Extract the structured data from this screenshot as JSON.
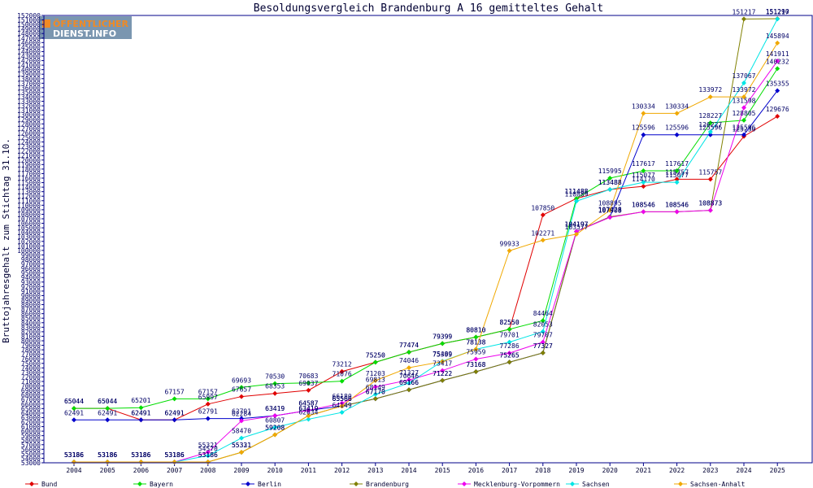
{
  "logo": {
    "line1": "ÖFFENTLICHER",
    "line2": "DIENST.INFO"
  },
  "chart_data": {
    "type": "line",
    "title": "Besoldungsvergleich Brandenburg A 16 gemitteltes Gehalt",
    "xlabel": "",
    "ylabel": "Bruttojahresgehalt zum Stichtag 31.10.",
    "ylim": [
      53000,
      152000
    ],
    "ytick_step": 1000,
    "grid": false,
    "legend_position": "bottom",
    "categories": [
      "2004",
      "2005",
      "2006",
      "2007",
      "2008",
      "2009",
      "2010",
      "2011",
      "2012",
      "2013",
      "2014",
      "2015",
      "2016",
      "2017",
      "2018",
      "2019",
      "2020",
      "2021",
      "2022",
      "2023",
      "2024",
      "2025"
    ],
    "series": [
      {
        "name": "Bund",
        "color": "#e00000",
        "values": [
          65044,
          65044,
          62491,
          62491,
          65997,
          67657,
          68353,
          69037,
          73212,
          75250,
          77474,
          79399,
          80810,
          82550,
          107850,
          111488,
          113488,
          114170,
          115757,
          115757,
          125250,
          129676
        ]
      },
      {
        "name": "Bayern",
        "color": "#00dd00",
        "values": [
          65044,
          65044,
          65201,
          67157,
          67157,
          69693,
          70530,
          70683,
          71076,
          75250,
          77474,
          79399,
          80810,
          82550,
          84464,
          111488,
          115995,
          117617,
          117617,
          128227,
          128805,
          140232
        ]
      },
      {
        "name": "Berlin",
        "color": "#0000cc",
        "values": [
          62491,
          62491,
          62491,
          62491,
          62791,
          62791,
          63419,
          64587,
          65566,
          67170,
          69166,
          71222,
          73168,
          75265,
          77327,
          104197,
          107428,
          125596,
          125596,
          125596,
          125596,
          135355
        ]
      },
      {
        "name": "Brandenburg",
        "color": "#808000",
        "values": [
          53186,
          53186,
          53186,
          53186,
          53186,
          55321,
          59208,
          63419,
          65566,
          67170,
          69166,
          71222,
          73168,
          75265,
          77327,
          104197,
          107428,
          108546,
          108546,
          108873,
          151217,
          151290
        ]
      },
      {
        "name": "Mecklenburg-Vorpommern",
        "color": "#ee00ee",
        "values": [
          53186,
          53186,
          53186,
          53186,
          55321,
          62284,
          63419,
          64587,
          66180,
          69813,
          71327,
          73417,
          75959,
          77286,
          79707,
          104197,
          107308,
          108546,
          108546,
          108873,
          131598,
          141911
        ]
      },
      {
        "name": "Sachsen",
        "color": "#00e5e5",
        "values": [
          53186,
          53186,
          53186,
          53186,
          54570,
          58470,
          60807,
          62634,
          64149,
          68149,
          70646,
          75489,
          78138,
          79701,
          82053,
          110889,
          113488,
          115077,
          115077,
          126227,
          137067,
          151217
        ]
      },
      {
        "name": "Sachsen-Anhalt",
        "color": "#f0a800",
        "values": [
          53186,
          53186,
          53186,
          53186,
          53186,
          55331,
          59208,
          63419,
          65566,
          71203,
          74046,
          75399,
          78138,
          99933,
          102271,
          103577,
          108895,
          130334,
          130334,
          133972,
          133972,
          145894
        ]
      }
    ]
  }
}
